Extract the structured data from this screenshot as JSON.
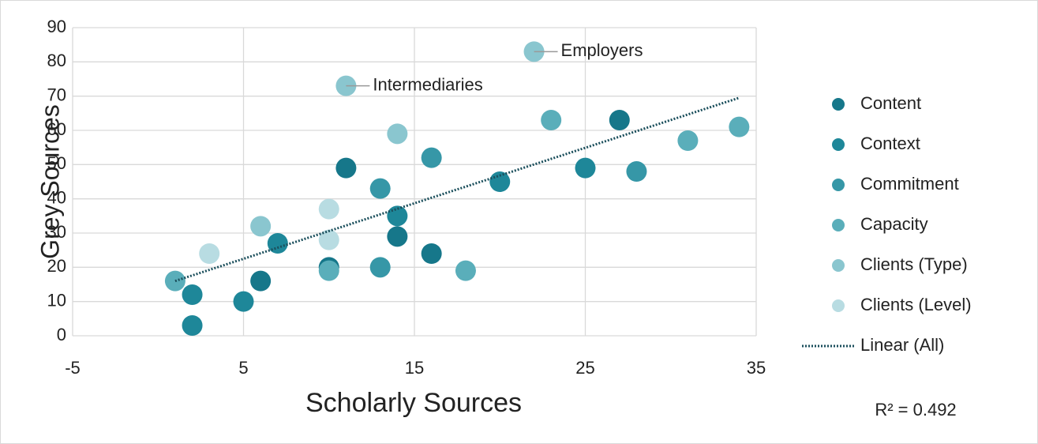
{
  "chart_data": {
    "type": "scatter",
    "xlabel": "Scholarly Sources",
    "ylabel": "Grey Sources",
    "xlim": [
      -5,
      35
    ],
    "xticks": [
      -5,
      5,
      15,
      25,
      35
    ],
    "ylim": [
      0,
      90
    ],
    "yticks": [
      0,
      10,
      20,
      30,
      40,
      50,
      60,
      70,
      80,
      90
    ],
    "grid": true,
    "legend": "right",
    "series": [
      {
        "name": "Content",
        "color": "#16778a",
        "x": [
          11,
          27,
          14,
          16,
          6,
          10
        ],
        "values": [
          49,
          63,
          29,
          24,
          16,
          20
        ]
      },
      {
        "name": "Context",
        "color": "#1e8799",
        "x": [
          2,
          2,
          5,
          7,
          20,
          25,
          14
        ],
        "values": [
          12,
          3,
          10,
          27,
          45,
          49,
          35
        ]
      },
      {
        "name": "Commitment",
        "color": "#3697a7",
        "x": [
          28,
          16,
          13,
          13
        ],
        "values": [
          48,
          52,
          20,
          43
        ]
      },
      {
        "name": "Capacity",
        "color": "#5aaeba",
        "x": [
          23,
          31,
          34,
          18,
          10,
          1
        ],
        "values": [
          63,
          57,
          61,
          19,
          19,
          16
        ]
      },
      {
        "name": "Clients (Type)",
        "color": "#8ac6cf",
        "x": [
          14,
          6
        ],
        "values": [
          59,
          32
        ]
      },
      {
        "name": "Clients (Level)",
        "color": "#b8dce2",
        "x": [
          3,
          10,
          10
        ],
        "values": [
          24,
          37,
          28
        ]
      }
    ],
    "annotations": [
      {
        "text": "Employers",
        "x": 22,
        "y": 83,
        "color": "#8ac6cf"
      },
      {
        "text": "Intermediaries",
        "x": 11,
        "y": 73,
        "color": "#8ac6cf"
      }
    ],
    "trendline": {
      "name": "Linear (All)",
      "color": "#1b4f5c",
      "x": [
        1,
        34
      ],
      "y": [
        16,
        69.5
      ],
      "r2_label": "R² = 0.492"
    }
  }
}
